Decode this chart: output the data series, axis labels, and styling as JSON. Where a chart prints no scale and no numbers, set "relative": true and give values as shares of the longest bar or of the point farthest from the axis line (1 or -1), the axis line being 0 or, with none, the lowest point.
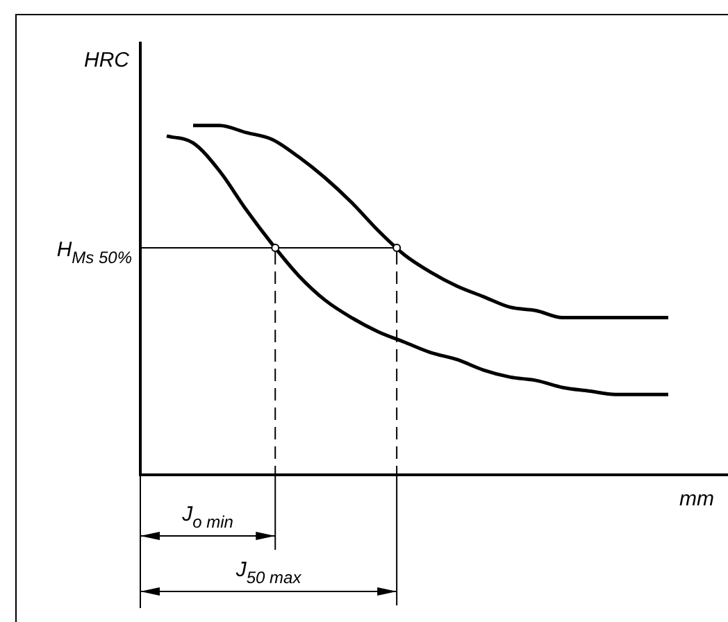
{
  "chart_data": {
    "type": "line",
    "relative": true,
    "xlabel": "mm",
    "ylabel": "HRC",
    "categories": [
      null,
      null,
      null,
      null,
      null,
      null,
      null,
      null,
      null,
      null,
      null,
      null,
      null,
      null,
      null,
      null,
      null,
      null,
      null,
      null,
      null
    ],
    "series": [
      {
        "color": "#000000",
        "values": [
          null,
          0.97,
          0.95,
          0.87,
          0.76,
          0.66,
          0.57,
          0.5,
          0.45,
          0.41,
          0.38,
          0.35,
          0.33,
          0.3,
          0.28,
          0.27,
          0.25,
          0.24,
          0.23,
          0.23,
          0.23
        ]
      },
      {
        "color": "#000000",
        "values": [
          null,
          null,
          1,
          1,
          0.98,
          0.96,
          0.91,
          0.85,
          0.78,
          0.7,
          0.63,
          0.58,
          0.54,
          0.51,
          0.48,
          0.47,
          0.45,
          0.45,
          0.45,
          0.45,
          0.45
        ]
      }
    ],
    "ref_lines": [
      {
        "axis": "y",
        "value": 0.65,
        "label": "H$_{Ms 50%}$"
      }
    ],
    "annotations": [
      "J$_{o min}$",
      "J$_{50 max}$"
    ]
  }
}
